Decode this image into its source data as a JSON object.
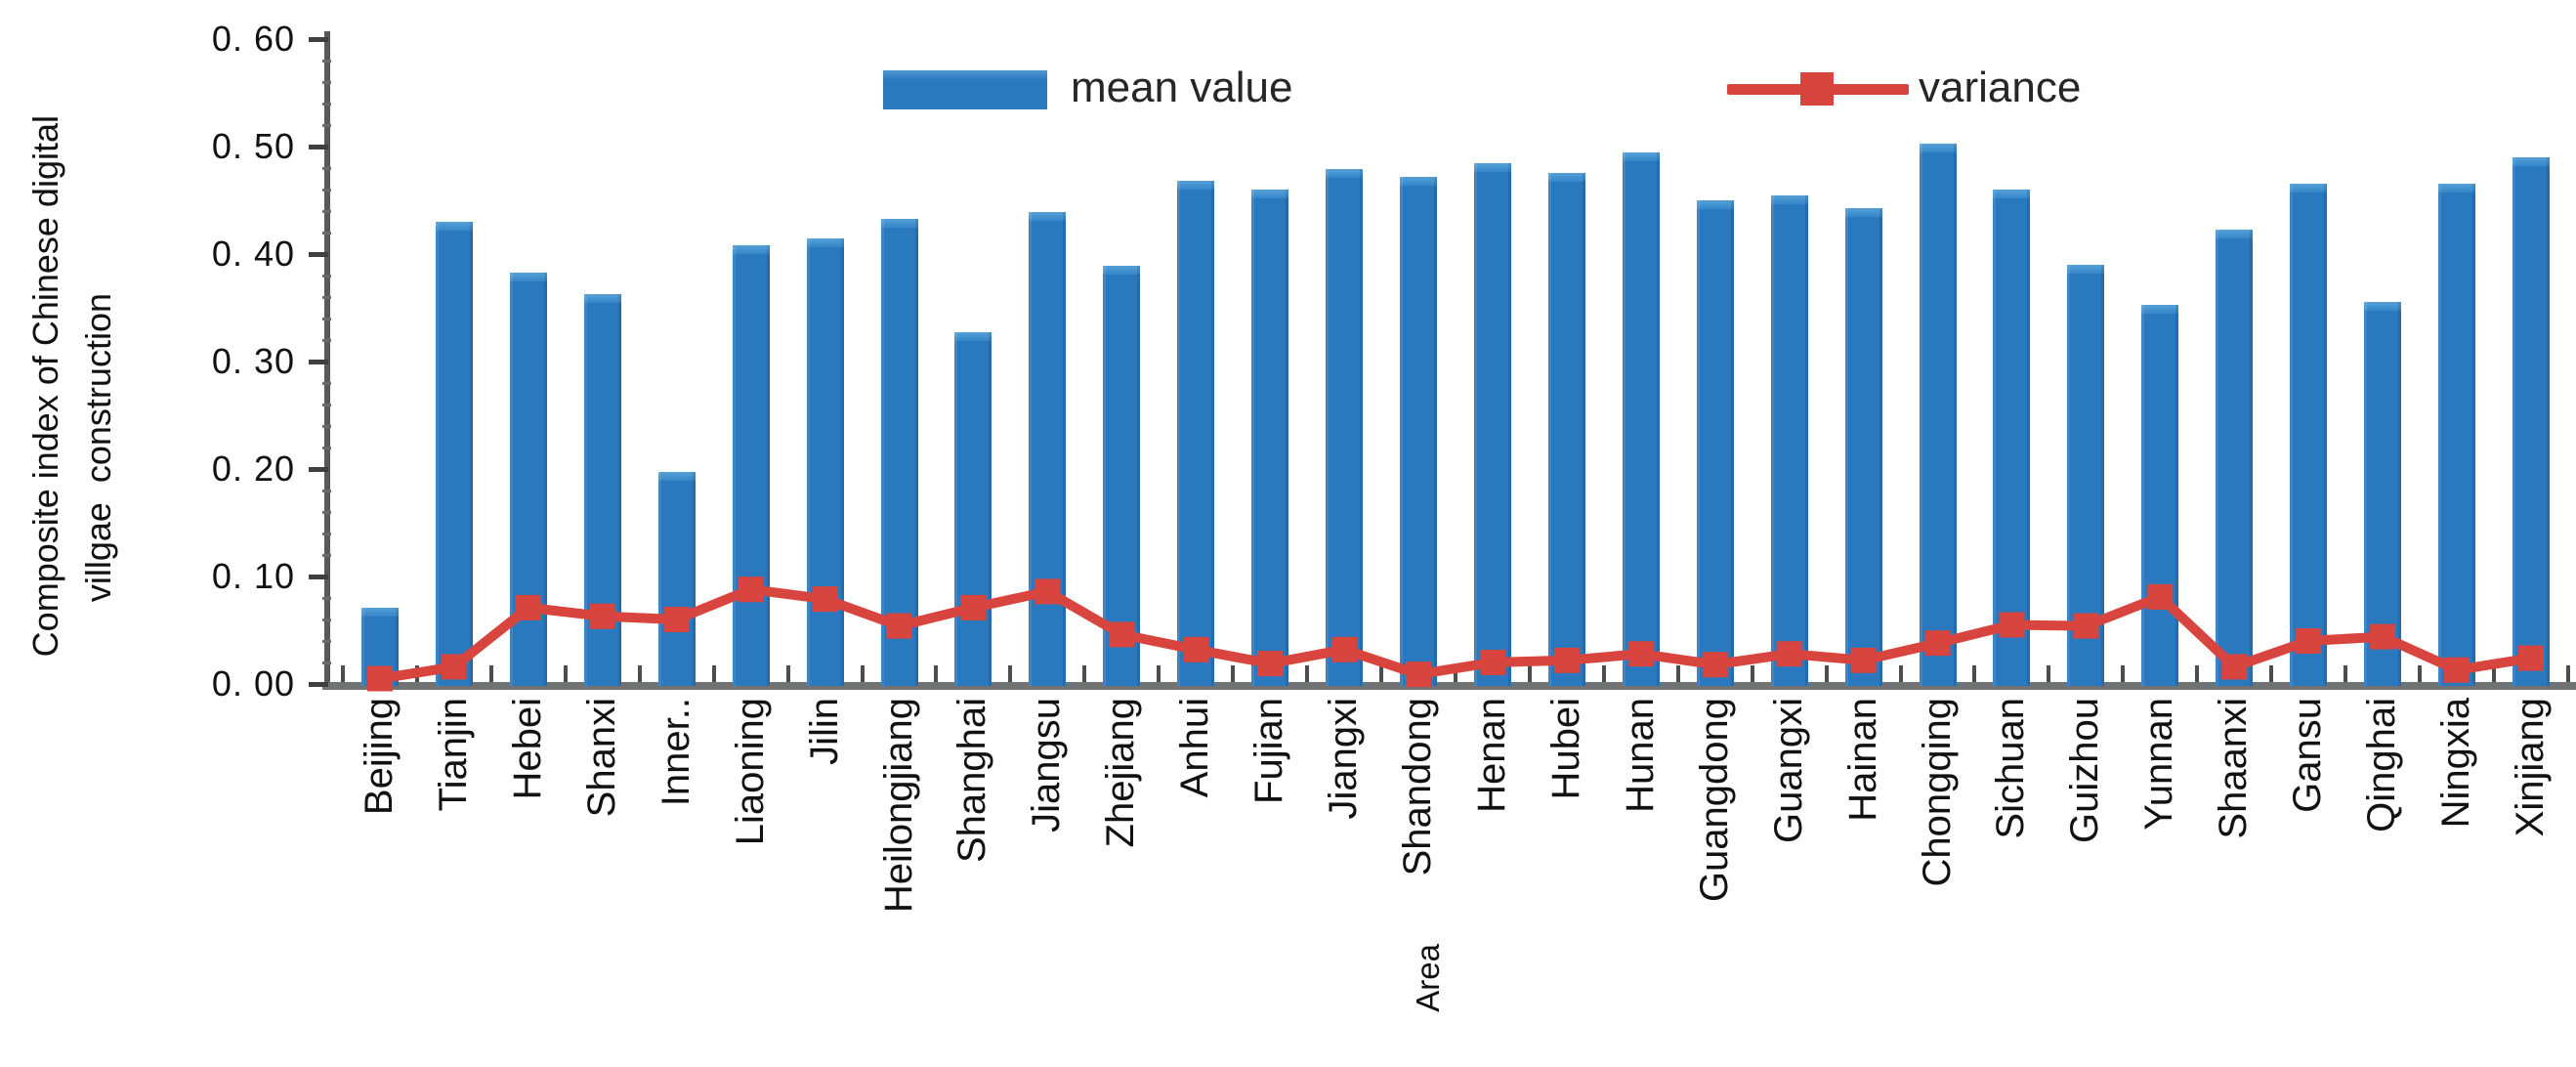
{
  "chart_data": {
    "type": "bar",
    "subtype": "bar-with-line-overlay",
    "title": "",
    "ylabel_line1": "Composite index of Chinese digital",
    "ylabel_line2": "villgae  construction",
    "xlabel": "Area",
    "ylim": [
      0,
      0.6
    ],
    "grid": false,
    "legend_position": "top-inside",
    "y_tick_labels": [
      "0. 00",
      "0. 10",
      "0. 20",
      "0. 30",
      "0. 40",
      "0. 50",
      "0. 60"
    ],
    "categories": [
      "Beijing",
      "Tianjin",
      "Hebei",
      "Shanxi",
      "Inner..",
      "Liaoning",
      "Jilin",
      "Heilongjiang",
      "Shanghai",
      "Jiangsu",
      "Zhejiang",
      "Anhui",
      "Fujian",
      "Jiangxi",
      "Shandong",
      "Henan",
      "Hubei",
      "Hunan",
      "Guangdong",
      "Guangxi",
      "Hainan",
      "Chongqing",
      "Sichuan",
      "Guizhou",
      "Yunnan",
      "Shaanxi",
      "Gansu",
      "Qinghai",
      "Ningxia",
      "Xinjiang"
    ],
    "series": [
      {
        "name": "mean value",
        "type": "bar",
        "color": "#2a78bd",
        "values": [
          0.073,
          0.432,
          0.385,
          0.365,
          0.199,
          0.41,
          0.416,
          0.435,
          0.329,
          0.441,
          0.391,
          0.47,
          0.462,
          0.481,
          0.474,
          0.486,
          0.477,
          0.496,
          0.452,
          0.456,
          0.445,
          0.505,
          0.462,
          0.392,
          0.355,
          0.425,
          0.467,
          0.357,
          0.467,
          0.492
        ]
      },
      {
        "name": "variance",
        "type": "line",
        "color": "#d8453e",
        "marker": "square",
        "values": [
          0.005,
          0.016,
          0.071,
          0.063,
          0.06,
          0.088,
          0.079,
          0.054,
          0.071,
          0.086,
          0.046,
          0.032,
          0.019,
          0.032,
          0.009,
          0.02,
          0.022,
          0.028,
          0.018,
          0.028,
          0.022,
          0.038,
          0.055,
          0.054,
          0.081,
          0.016,
          0.04,
          0.044,
          0.013,
          0.024
        ]
      }
    ]
  },
  "colors": {
    "bar_blue": "#2a78bd",
    "bar_blue_highlight": "#55a0d7",
    "line_red": "#d8453e",
    "axis_gray": "#58595b",
    "text_dark": "#1a1a1a"
  }
}
